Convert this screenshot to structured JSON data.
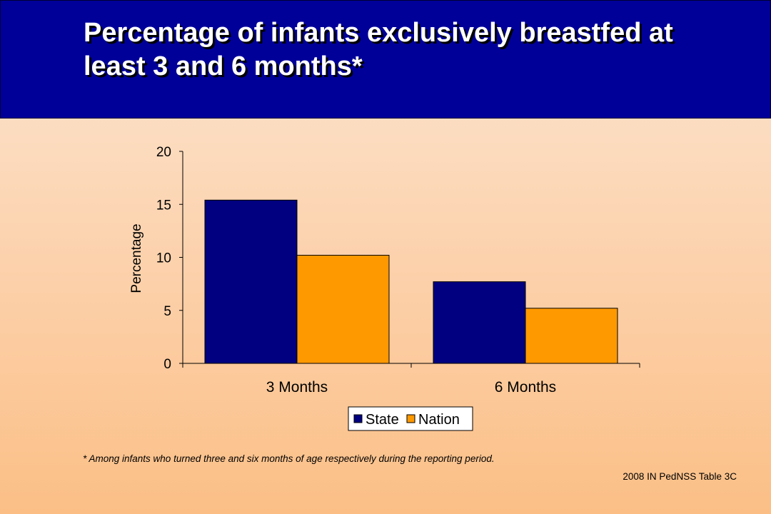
{
  "slide": {
    "title": "Percentage of infants exclusively breastfed at least 3 and 6 months*",
    "footnote": "*  Among infants who turned three and six months of age respectively during the reporting period.",
    "source": "2008 IN PedNSS Table 3C"
  },
  "chart_data": {
    "type": "bar",
    "categories": [
      "3 Months",
      "6 Months"
    ],
    "series": [
      {
        "name": "State",
        "values": [
          15.4,
          7.7
        ],
        "color": "#000080"
      },
      {
        "name": "Nation",
        "values": [
          10.2,
          5.2
        ],
        "color": "#ff9900"
      }
    ],
    "title": "",
    "xlabel": "",
    "ylabel": "Percentage",
    "ylim": [
      0,
      20
    ],
    "yticks": [
      "0",
      "5",
      "10",
      "15",
      "20"
    ],
    "grid": false,
    "legend": "bottom"
  }
}
